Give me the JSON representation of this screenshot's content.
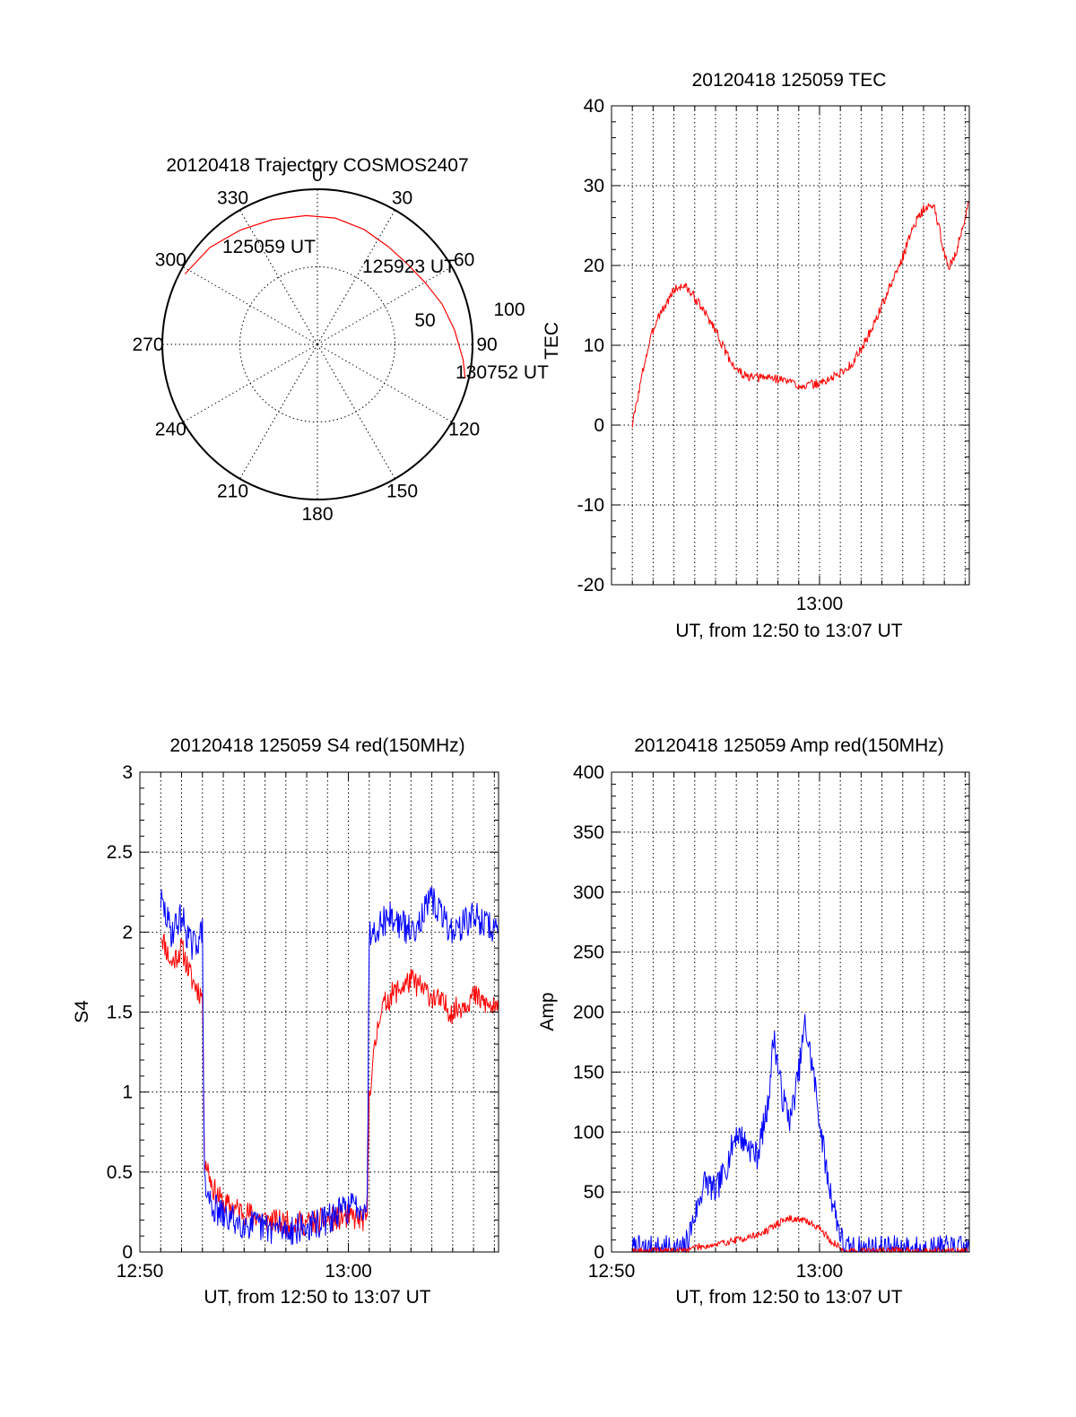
{
  "polar": {
    "title": "20120418 Trajectory COSMOS2407",
    "az_labels": [
      "0",
      "30",
      "60",
      "90",
      "120",
      "150",
      "180",
      "210",
      "240",
      "270",
      "300",
      "330"
    ],
    "ring_labels": [
      "50",
      "100"
    ],
    "annotations": [
      {
        "text": "125059 UT",
        "az": 298,
        "zd": 86
      },
      {
        "text": "125923 UT",
        "az": 40,
        "zd": 65
      },
      {
        "text": "130752 UT",
        "az": 103,
        "zd": 88
      }
    ],
    "trajectory": {
      "color": "#ff0000",
      "points": [
        [
          298,
          87
        ],
        [
          312,
          84
        ],
        [
          326,
          80
        ],
        [
          340,
          77
        ],
        [
          355,
          75
        ],
        [
          8,
          74
        ],
        [
          22,
          72
        ],
        [
          36,
          70
        ],
        [
          48,
          70
        ],
        [
          60,
          72
        ],
        [
          72,
          76
        ],
        [
          84,
          80
        ],
        [
          96,
          85
        ],
        [
          103,
          88
        ]
      ]
    }
  },
  "chart_data": [
    {
      "id": "tec",
      "type": "line",
      "title": "20120418 125059 TEC",
      "xlabel": "UT, from 12:50 to 13:07 UT",
      "ylabel": "TEC",
      "xlim": [
        0,
        17.2
      ],
      "ylim": [
        -20,
        40
      ],
      "yticks": [
        "-20",
        "-10",
        "0",
        "10",
        "20",
        "30",
        "40"
      ],
      "xtick_labels": [
        {
          "at": 10,
          "label": "13:00"
        }
      ],
      "grid": true,
      "series": [
        {
          "color": "#ff0000",
          "noise": 0.6,
          "seed": 3,
          "points": [
            [
              1.0,
              0
            ],
            [
              1.3,
              4
            ],
            [
              1.6,
              8
            ],
            [
              1.9,
              11
            ],
            [
              2.2,
              13.5
            ],
            [
              2.6,
              15
            ],
            [
              3.0,
              17
            ],
            [
              3.5,
              17.5
            ],
            [
              4.0,
              16
            ],
            [
              4.5,
              14
            ],
            [
              5.0,
              12
            ],
            [
              5.5,
              9
            ],
            [
              6.0,
              7
            ],
            [
              6.5,
              6
            ],
            [
              7.0,
              5.9
            ],
            [
              7.5,
              6
            ],
            [
              8.0,
              5.8
            ],
            [
              8.5,
              5.5
            ],
            [
              9.0,
              5
            ],
            [
              9.5,
              5
            ],
            [
              10.0,
              5.2
            ],
            [
              10.5,
              5.8
            ],
            [
              11.0,
              6.5
            ],
            [
              11.5,
              7.5
            ],
            [
              12.0,
              9.5
            ],
            [
              12.5,
              12
            ],
            [
              13.0,
              15
            ],
            [
              13.5,
              18
            ],
            [
              14.0,
              21
            ],
            [
              14.5,
              25
            ],
            [
              15.0,
              27
            ],
            [
              15.5,
              27.5
            ],
            [
              15.8,
              24
            ],
            [
              16.2,
              19.5
            ],
            [
              16.6,
              22
            ],
            [
              17.2,
              28
            ]
          ]
        }
      ]
    },
    {
      "id": "s4",
      "type": "line",
      "title": "20120418 125059 S4 red(150MHz)",
      "xlabel": "UT, from 12:50 to 13:07 UT",
      "ylabel": "S4",
      "xlim": [
        0,
        17.2
      ],
      "ylim": [
        0,
        3
      ],
      "yticks": [
        "0",
        "0.5",
        "1",
        "1.5",
        "2",
        "2.5",
        "3"
      ],
      "xtick_labels": [
        {
          "at": 0,
          "label": "12:50"
        },
        {
          "at": 10,
          "label": "13:00"
        }
      ],
      "grid": true,
      "series": [
        {
          "color": "#ff0000",
          "noise": 0.08,
          "seed": 11,
          "points": [
            [
              1.0,
              2.0
            ],
            [
              1.5,
              1.8
            ],
            [
              2.0,
              1.9
            ],
            [
              2.5,
              1.7
            ],
            [
              3.0,
              1.6
            ],
            [
              3.1,
              0.6
            ],
            [
              3.5,
              0.4
            ],
            [
              4.0,
              0.3
            ],
            [
              5.0,
              0.25
            ],
            [
              6.0,
              0.2
            ],
            [
              7.0,
              0.18
            ],
            [
              8.0,
              0.18
            ],
            [
              9.0,
              0.2
            ],
            [
              10.0,
              0.22
            ],
            [
              10.9,
              0.2
            ],
            [
              11.0,
              1.0
            ],
            [
              11.5,
              1.5
            ],
            [
              12.0,
              1.6
            ],
            [
              13.0,
              1.7
            ],
            [
              14.0,
              1.6
            ],
            [
              15.0,
              1.5
            ],
            [
              16.0,
              1.6
            ],
            [
              17.2,
              1.5
            ]
          ]
        },
        {
          "color": "#0000ff",
          "noise": 0.1,
          "seed": 29,
          "points": [
            [
              1.0,
              2.2
            ],
            [
              1.5,
              2.0
            ],
            [
              2.0,
              2.1
            ],
            [
              2.5,
              1.9
            ],
            [
              3.0,
              2.0
            ],
            [
              3.1,
              0.4
            ],
            [
              3.5,
              0.28
            ],
            [
              4.0,
              0.22
            ],
            [
              5.0,
              0.18
            ],
            [
              6.0,
              0.15
            ],
            [
              7.0,
              0.14
            ],
            [
              8.0,
              0.15
            ],
            [
              9.0,
              0.2
            ],
            [
              10.0,
              0.28
            ],
            [
              10.9,
              0.3
            ],
            [
              11.0,
              2.0
            ],
            [
              12.0,
              2.1
            ],
            [
              13.0,
              2.0
            ],
            [
              14.0,
              2.2
            ],
            [
              15.0,
              2.0
            ],
            [
              16.0,
              2.1
            ],
            [
              17.2,
              2.0
            ]
          ]
        }
      ]
    },
    {
      "id": "amp",
      "type": "line",
      "title": "20120418 125059 Amp red(150MHz)",
      "xlabel": "UT, from 12:50 to 13:07 UT",
      "ylabel": "Amp",
      "xlim": [
        0,
        17.2
      ],
      "ylim": [
        0,
        400
      ],
      "yticks": [
        "0",
        "50",
        "100",
        "150",
        "200",
        "250",
        "300",
        "350",
        "400"
      ],
      "xtick_labels": [
        {
          "at": 0,
          "label": "12:50"
        },
        {
          "at": 10,
          "label": "13:00"
        }
      ],
      "grid": true,
      "series": [
        {
          "color": "#0000ff",
          "noise": 12,
          "seed": 7,
          "points": [
            [
              1.0,
              2
            ],
            [
              3.5,
              2
            ],
            [
              4.0,
              30
            ],
            [
              4.5,
              60
            ],
            [
              5.0,
              50
            ],
            [
              5.5,
              70
            ],
            [
              6.0,
              100
            ],
            [
              6.5,
              90
            ],
            [
              7.0,
              80
            ],
            [
              7.5,
              120
            ],
            [
              7.8,
              180
            ],
            [
              8.2,
              130
            ],
            [
              8.6,
              110
            ],
            [
              9.0,
              150
            ],
            [
              9.3,
              190
            ],
            [
              9.7,
              150
            ],
            [
              10.0,
              110
            ],
            [
              10.4,
              60
            ],
            [
              10.8,
              30
            ],
            [
              11.0,
              15
            ],
            [
              11.2,
              2
            ],
            [
              17.2,
              2
            ]
          ]
        },
        {
          "color": "#ff0000",
          "noise": 3,
          "seed": 19,
          "points": [
            [
              1.0,
              1
            ],
            [
              3.5,
              1
            ],
            [
              4.0,
              4
            ],
            [
              5.0,
              6
            ],
            [
              6.0,
              10
            ],
            [
              7.0,
              14
            ],
            [
              7.5,
              18
            ],
            [
              8.0,
              24
            ],
            [
              8.5,
              28
            ],
            [
              9.0,
              27
            ],
            [
              9.5,
              25
            ],
            [
              10.0,
              20
            ],
            [
              10.5,
              10
            ],
            [
              11.0,
              3
            ],
            [
              11.2,
              1
            ],
            [
              17.2,
              1
            ]
          ]
        }
      ]
    }
  ]
}
